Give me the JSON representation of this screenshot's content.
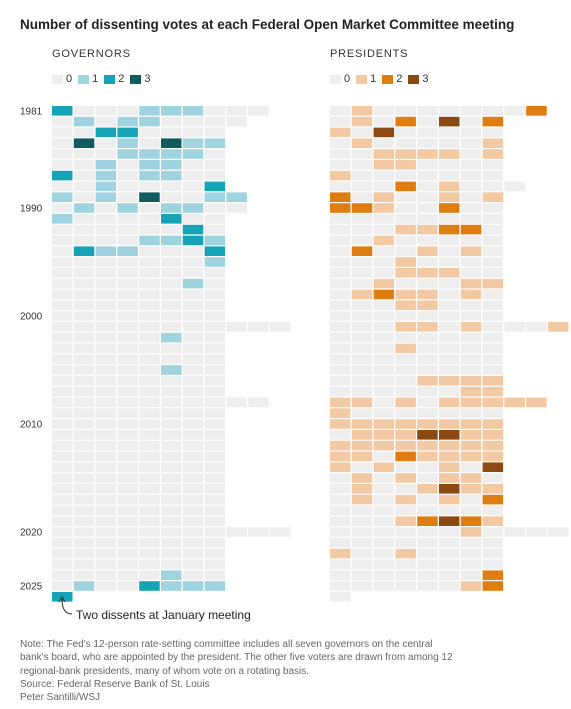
{
  "title": "Number of dissenting votes at each Federal Open Market Committee meeting",
  "annotation": "Two dissents at January meeting",
  "footer": {
    "note": "Note: The Fed's 12-person rate-setting committee includes all seven governors on the central bank's board, who are appointed by the president. The other five voters are drawn from among 12 regional-bank presidents, many of whom vote on a rotating basis.",
    "source": "Source: Federal Reserve Bank of St. Louis",
    "credit": "Peter Santilli/WSJ"
  },
  "chart_data": {
    "type": "heatmap",
    "title": "Number of dissenting votes at each Federal Open Market Committee meeting",
    "rows": "years 1981–2025 (one row per year; 1981 start-of-grid row shows extra meetings)",
    "columns": "FOMC meetings within each year (left to right)",
    "year_tick_labels": [
      "1981",
      "1990",
      "2000",
      "2010",
      "2020",
      "2025"
    ],
    "panels": [
      {
        "name": "GOVERNORS",
        "legend": [
          {
            "label": "0",
            "color": "#eeeeee"
          },
          {
            "label": "1",
            "color": "#9fd3df"
          },
          {
            "label": "2",
            "color": "#17a3b6"
          },
          {
            "label": "3",
            "color": "#0f5b60"
          }
        ],
        "data": {
          "1981": [
            2,
            0,
            0,
            0,
            1,
            1,
            1,
            0,
            0,
            0
          ],
          "1982": [
            0,
            1,
            0,
            1,
            1,
            0,
            0,
            0,
            0
          ],
          "1983": [
            0,
            0,
            2,
            2,
            0,
            0,
            0,
            0
          ],
          "1984": [
            0,
            3,
            0,
            1,
            0,
            3,
            1,
            1
          ],
          "1985": [
            0,
            0,
            0,
            1,
            1,
            1,
            1,
            0
          ],
          "1986": [
            0,
            0,
            1,
            0,
            1,
            1,
            0,
            0
          ],
          "1987": [
            2,
            0,
            1,
            0,
            1,
            1,
            0,
            0
          ],
          "1988": [
            0,
            0,
            1,
            0,
            0,
            0,
            0,
            2
          ],
          "1989": [
            1,
            0,
            1,
            0,
            3,
            0,
            0,
            1,
            1
          ],
          "1990": [
            0,
            1,
            0,
            1,
            0,
            1,
            1,
            0,
            0
          ],
          "1991": [
            1,
            0,
            0,
            0,
            0,
            2,
            0,
            0
          ],
          "1992": [
            0,
            0,
            0,
            0,
            0,
            0,
            2,
            0
          ],
          "1993": [
            0,
            0,
            0,
            0,
            1,
            1,
            2,
            1
          ],
          "1994": [
            0,
            2,
            1,
            1,
            0,
            0,
            0,
            2
          ],
          "1995": [
            0,
            0,
            0,
            0,
            0,
            0,
            0,
            1
          ],
          "1996": [
            0,
            0,
            0,
            0,
            0,
            0,
            0,
            0
          ],
          "1997": [
            0,
            0,
            0,
            0,
            0,
            0,
            1,
            0
          ],
          "1998": [
            0,
            0,
            0,
            0,
            0,
            0,
            0,
            0
          ],
          "1999": [
            0,
            0,
            0,
            0,
            0,
            0,
            0,
            0
          ],
          "2000": [
            0,
            0,
            0,
            0,
            0,
            0,
            0,
            0
          ],
          "2001": [
            0,
            0,
            0,
            0,
            0,
            0,
            0,
            0,
            0,
            0,
            0
          ],
          "2002": [
            0,
            0,
            0,
            0,
            0,
            1,
            0,
            0
          ],
          "2003": [
            0,
            0,
            0,
            0,
            0,
            0,
            0,
            0
          ],
          "2004": [
            0,
            0,
            0,
            0,
            0,
            0,
            0,
            0
          ],
          "2005": [
            0,
            0,
            0,
            0,
            0,
            1,
            0,
            0
          ],
          "2006": [
            0,
            0,
            0,
            0,
            0,
            0,
            0,
            0
          ],
          "2007": [
            0,
            0,
            0,
            0,
            0,
            0,
            0,
            0
          ],
          "2008": [
            0,
            0,
            0,
            0,
            0,
            0,
            0,
            0,
            0,
            0
          ],
          "2009": [
            0,
            0,
            0,
            0,
            0,
            0,
            0,
            0
          ],
          "2010": [
            0,
            0,
            0,
            0,
            0,
            0,
            0,
            0
          ],
          "2011": [
            0,
            0,
            0,
            0,
            0,
            0,
            0,
            0
          ],
          "2012": [
            0,
            0,
            0,
            0,
            0,
            0,
            0,
            0
          ],
          "2013": [
            0,
            0,
            0,
            0,
            0,
            0,
            0,
            0
          ],
          "2014": [
            0,
            0,
            0,
            0,
            0,
            0,
            0,
            0
          ],
          "2015": [
            0,
            0,
            0,
            0,
            0,
            0,
            0,
            0
          ],
          "2016": [
            0,
            0,
            0,
            0,
            0,
            0,
            0,
            0
          ],
          "2017": [
            0,
            0,
            0,
            0,
            0,
            0,
            0,
            0
          ],
          "2018": [
            0,
            0,
            0,
            0,
            0,
            0,
            0,
            0
          ],
          "2019": [
            0,
            0,
            0,
            0,
            0,
            0,
            0,
            0
          ],
          "2020": [
            0,
            0,
            0,
            0,
            0,
            0,
            0,
            0,
            0,
            0,
            0
          ],
          "2021": [
            0,
            0,
            0,
            0,
            0,
            0,
            0,
            0
          ],
          "2022": [
            0,
            0,
            0,
            0,
            0,
            0,
            0,
            0
          ],
          "2023": [
            0,
            0,
            0,
            0,
            0,
            0,
            0,
            0
          ],
          "2024": [
            0,
            0,
            0,
            0,
            0,
            1,
            0,
            0
          ],
          "2025": [
            0,
            1,
            0,
            0,
            2,
            1,
            1,
            1
          ],
          "2026": [
            2
          ]
        }
      },
      {
        "name": "PRESIDENTS",
        "legend": [
          {
            "label": "0",
            "color": "#eeeeee"
          },
          {
            "label": "1",
            "color": "#f2c9a2"
          },
          {
            "label": "2",
            "color": "#e07d10"
          },
          {
            "label": "3",
            "color": "#8c4a12"
          }
        ],
        "data": {
          "1981": [
            0,
            1,
            0,
            0,
            0,
            0,
            0,
            0,
            0,
            2
          ],
          "1982": [
            0,
            1,
            0,
            2,
            0,
            3,
            0,
            2
          ],
          "1983": [
            1,
            0,
            3,
            0,
            0,
            0,
            0,
            0
          ],
          "1984": [
            0,
            1,
            0,
            0,
            0,
            0,
            0,
            1
          ],
          "1985": [
            0,
            0,
            1,
            1,
            1,
            1,
            0,
            1
          ],
          "1986": [
            0,
            0,
            1,
            1,
            0,
            0,
            0,
            0
          ],
          "1987": [
            1,
            0,
            0,
            0,
            0,
            0,
            0,
            0
          ],
          "1988": [
            0,
            0,
            0,
            2,
            0,
            1,
            0,
            0,
            0
          ],
          "1989": [
            2,
            0,
            1,
            0,
            0,
            1,
            0,
            1
          ],
          "1990": [
            2,
            2,
            1,
            0,
            0,
            2,
            0,
            0
          ],
          "1991": [
            0,
            0,
            0,
            0,
            0,
            0,
            0,
            0
          ],
          "1992": [
            0,
            0,
            0,
            1,
            1,
            2,
            2,
            0
          ],
          "1993": [
            0,
            0,
            1,
            0,
            0,
            0,
            0,
            0
          ],
          "1994": [
            0,
            2,
            0,
            0,
            1,
            0,
            1,
            0
          ],
          "1995": [
            0,
            0,
            0,
            1,
            0,
            0,
            0,
            0
          ],
          "1996": [
            0,
            0,
            0,
            1,
            1,
            1,
            0,
            0
          ],
          "1997": [
            0,
            0,
            1,
            0,
            0,
            0,
            1,
            1
          ],
          "1998": [
            0,
            1,
            2,
            1,
            1,
            0,
            1,
            0
          ],
          "1999": [
            0,
            0,
            0,
            1,
            1,
            0,
            0,
            0
          ],
          "2000": [
            0,
            0,
            0,
            0,
            0,
            0,
            0,
            0
          ],
          "2001": [
            0,
            0,
            0,
            1,
            1,
            0,
            1,
            0,
            0,
            0,
            1
          ],
          "2002": [
            0,
            0,
            0,
            0,
            0,
            0,
            0,
            0
          ],
          "2003": [
            0,
            0,
            0,
            1,
            0,
            0,
            0,
            0
          ],
          "2004": [
            0,
            0,
            0,
            0,
            0,
            0,
            0,
            0
          ],
          "2005": [
            0,
            0,
            0,
            0,
            0,
            0,
            0,
            0
          ],
          "2006": [
            0,
            0,
            0,
            0,
            1,
            1,
            1,
            1
          ],
          "2007": [
            0,
            0,
            0,
            0,
            0,
            0,
            1,
            1
          ],
          "2008": [
            1,
            1,
            0,
            1,
            0,
            1,
            1,
            1,
            1,
            1
          ],
          "2009": [
            1,
            0,
            0,
            0,
            0,
            0,
            0,
            0
          ],
          "2010": [
            1,
            1,
            1,
            1,
            1,
            1,
            1,
            1
          ],
          "2011": [
            0,
            1,
            1,
            1,
            3,
            3,
            1,
            1
          ],
          "2012": [
            1,
            1,
            1,
            1,
            1,
            1,
            1,
            1
          ],
          "2013": [
            1,
            1,
            0,
            2,
            1,
            1,
            1,
            1
          ],
          "2014": [
            1,
            0,
            1,
            0,
            0,
            1,
            0,
            3
          ],
          "2015": [
            0,
            1,
            0,
            1,
            0,
            1,
            1,
            0
          ],
          "2016": [
            0,
            1,
            0,
            0,
            1,
            3,
            1,
            1
          ],
          "2017": [
            0,
            1,
            0,
            1,
            0,
            1,
            0,
            2
          ],
          "2018": [
            0,
            0,
            0,
            0,
            0,
            0,
            0,
            0
          ],
          "2019": [
            0,
            0,
            0,
            1,
            2,
            3,
            2,
            1
          ],
          "2020": [
            0,
            0,
            0,
            0,
            0,
            0,
            1,
            0,
            0,
            0,
            0
          ],
          "2021": [
            0,
            0,
            0,
            0,
            0,
            0,
            0,
            0
          ],
          "2022": [
            1,
            0,
            0,
            1,
            0,
            0,
            0,
            0
          ],
          "2023": [
            0,
            0,
            0,
            0,
            0,
            0,
            0,
            0
          ],
          "2024": [
            0,
            0,
            0,
            0,
            0,
            0,
            0,
            2
          ],
          "2025": [
            0,
            0,
            0,
            0,
            0,
            0,
            1,
            2
          ],
          "2026": [
            0
          ]
        }
      }
    ]
  }
}
